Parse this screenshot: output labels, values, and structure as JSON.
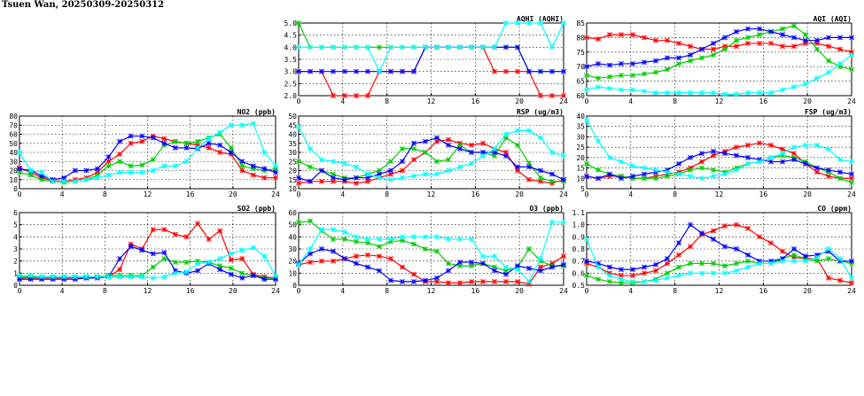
{
  "page": {
    "title": "Tsuen Wan, 20250309-20250312"
  },
  "colors": {
    "series1": "#ff0000",
    "series2": "#00cc00",
    "series3": "#0000ff",
    "series4": "#00ffff"
  },
  "chart_data": [
    {
      "id": "aqhi",
      "type": "line",
      "title": "AQHI (AQHI)",
      "xlim": [
        0,
        24
      ],
      "xticks": [
        0,
        4,
        8,
        12,
        16,
        20,
        24
      ],
      "ylim": [
        2.0,
        5.0
      ],
      "yticks": [
        "2.0",
        "2.5",
        "3.0",
        "3.5",
        "4.0",
        "4.5",
        "5.0"
      ],
      "grid": true,
      "series": [
        {
          "color": "#ff0000",
          "values": [
            3,
            3,
            3,
            2,
            2,
            2,
            2,
            3,
            3,
            3,
            3,
            4,
            4,
            4,
            4,
            4,
            4,
            3,
            3,
            3,
            3,
            2,
            2,
            2
          ]
        },
        {
          "color": "#00cc00",
          "values": [
            5,
            4,
            4,
            4,
            4,
            4,
            4,
            4,
            4,
            4,
            4,
            4,
            4,
            4,
            4,
            4,
            4,
            4,
            4,
            4,
            3,
            3,
            3,
            3
          ]
        },
        {
          "color": "#0000ff",
          "values": [
            3,
            3,
            3,
            3,
            3,
            3,
            3,
            3,
            3,
            3,
            3,
            4,
            4,
            4,
            4,
            4,
            4,
            4,
            4,
            4,
            3,
            3,
            3,
            3
          ]
        },
        {
          "color": "#00ffff",
          "values": [
            4,
            4,
            4,
            4,
            4,
            4,
            4,
            3,
            4,
            4,
            4,
            4,
            4,
            4,
            4,
            4,
            4,
            4,
            5,
            5,
            5,
            5,
            4,
            5
          ]
        }
      ]
    },
    {
      "id": "aqi",
      "type": "line",
      "title": "AQI (AQI)",
      "xlim": [
        0,
        24
      ],
      "xticks": [
        0,
        4,
        8,
        12,
        16,
        20,
        24
      ],
      "ylim": [
        60,
        85
      ],
      "yticks": [
        "60",
        "65",
        "70",
        "75",
        "80",
        "85"
      ],
      "grid": true,
      "series": [
        {
          "color": "#ff0000",
          "values": [
            80,
            79.5,
            81,
            81,
            81,
            80,
            79,
            79,
            78,
            77,
            76,
            76,
            77,
            77,
            78,
            78,
            78,
            77,
            77,
            78,
            78,
            77,
            76,
            75
          ]
        },
        {
          "color": "#00cc00",
          "values": [
            67,
            66,
            66.5,
            67,
            67,
            67.5,
            68,
            69,
            71,
            72,
            73,
            74,
            76,
            79,
            80,
            81,
            82,
            83,
            84,
            81,
            76,
            72,
            70,
            69
          ]
        },
        {
          "color": "#0000ff",
          "values": [
            70,
            71,
            70.5,
            71,
            71,
            71.5,
            72,
            73,
            73,
            74,
            76,
            78,
            80,
            82,
            83,
            83,
            82,
            81,
            80,
            79,
            79,
            80,
            80,
            80
          ]
        },
        {
          "color": "#00ffff",
          "values": [
            62,
            63,
            62.5,
            62,
            62,
            61.5,
            61,
            61,
            61,
            61,
            61,
            61,
            60.5,
            60.5,
            61,
            61,
            61,
            62,
            63,
            64,
            66,
            68,
            71,
            74
          ]
        }
      ]
    },
    {
      "id": "no2",
      "type": "line",
      "title": "NO2 (ppb)",
      "xlim": [
        0,
        24
      ],
      "xticks": [
        0,
        4,
        8,
        12,
        16,
        20,
        24
      ],
      "ylim": [
        0,
        80
      ],
      "yticks": [
        "0",
        "10",
        "20",
        "30",
        "40",
        "50",
        "60",
        "70",
        "80"
      ],
      "grid": true,
      "series": [
        {
          "color": "#ff0000",
          "values": [
            23,
            18,
            12,
            9,
            8,
            10,
            12,
            18,
            30,
            38,
            50,
            52,
            58,
            55,
            52,
            50,
            48,
            45,
            40,
            38,
            20,
            15,
            12,
            12
          ]
        },
        {
          "color": "#00cc00",
          "values": [
            18,
            15,
            10,
            8,
            7,
            8,
            10,
            15,
            25,
            30,
            25,
            26,
            32,
            48,
            52,
            50,
            52,
            56,
            60,
            45,
            25,
            22,
            20,
            22
          ]
        },
        {
          "color": "#0000ff",
          "values": [
            22,
            20,
            14,
            10,
            12,
            20,
            20,
            22,
            35,
            52,
            58,
            58,
            56,
            50,
            45,
            45,
            44,
            50,
            48,
            40,
            30,
            25,
            22,
            18
          ]
        },
        {
          "color": "#00ffff",
          "values": [
            40,
            20,
            18,
            8,
            8,
            8,
            10,
            12,
            15,
            18,
            18,
            18,
            20,
            25,
            25,
            30,
            45,
            55,
            62,
            70,
            70,
            72,
            40,
            25
          ]
        }
      ]
    },
    {
      "id": "rsp",
      "type": "line",
      "title": "RSP (ug/m3)",
      "xlim": [
        0,
        24
      ],
      "xticks": [
        0,
        4,
        8,
        12,
        16,
        20,
        24
      ],
      "ylim": [
        10,
        50
      ],
      "yticks": [
        "10",
        "15",
        "20",
        "25",
        "30",
        "35",
        "40",
        "45",
        "50"
      ],
      "grid": true,
      "series": [
        {
          "color": "#ff0000",
          "values": [
            13,
            14,
            14,
            14,
            14,
            13,
            14,
            16,
            18,
            20,
            26,
            30,
            36,
            37,
            35,
            34,
            35,
            32,
            30,
            20,
            15,
            14,
            13,
            15
          ]
        },
        {
          "color": "#00cc00",
          "values": [
            25,
            22,
            20,
            18,
            16,
            16,
            18,
            20,
            25,
            32,
            32,
            30,
            25,
            26,
            34,
            30,
            30,
            28,
            38,
            34,
            24,
            16,
            14,
            14
          ]
        },
        {
          "color": "#0000ff",
          "values": [
            16,
            14,
            20,
            16,
            15,
            16,
            16,
            18,
            20,
            25,
            35,
            36,
            38,
            34,
            32,
            30,
            30,
            30,
            28,
            22,
            22,
            20,
            18,
            15
          ]
        },
        {
          "color": "#00ffff",
          "values": [
            44,
            32,
            26,
            25,
            24,
            22,
            18,
            16,
            15,
            16,
            17,
            18,
            18,
            20,
            22,
            24,
            28,
            32,
            40,
            42,
            42,
            38,
            30,
            28
          ]
        }
      ]
    },
    {
      "id": "fsp",
      "type": "line",
      "title": "FSP (ug/m3)",
      "xlim": [
        0,
        24
      ],
      "xticks": [
        0,
        4,
        8,
        12,
        16,
        20,
        24
      ],
      "ylim": [
        5,
        40
      ],
      "yticks": [
        "5",
        "10",
        "15",
        "20",
        "25",
        "30",
        "35",
        "40"
      ],
      "grid": true,
      "series": [
        {
          "color": "#ff0000",
          "values": [
            11,
            10,
            11,
            11,
            10,
            10,
            11,
            12,
            13,
            15,
            18,
            21,
            23,
            25,
            26,
            27,
            26,
            24,
            22,
            17,
            13,
            11,
            10,
            10
          ]
        },
        {
          "color": "#00cc00",
          "values": [
            17,
            14,
            12,
            11,
            10,
            10,
            10,
            11,
            12,
            14,
            15,
            14,
            13,
            15,
            17,
            18,
            20,
            21,
            20,
            18,
            15,
            13,
            10,
            8
          ]
        },
        {
          "color": "#0000ff",
          "values": [
            11,
            10,
            12,
            10,
            11,
            12,
            13,
            14,
            17,
            20,
            22,
            23,
            22,
            21,
            20,
            19,
            18,
            18,
            19,
            17,
            15,
            14,
            13,
            12
          ]
        },
        {
          "color": "#00ffff",
          "values": [
            38,
            28,
            20,
            18,
            16,
            15,
            14,
            13,
            12,
            11,
            10,
            11,
            12,
            14,
            17,
            18,
            20,
            22,
            25,
            26,
            26,
            24,
            19,
            18
          ]
        }
      ]
    },
    {
      "id": "so2",
      "type": "line",
      "title": "SO2 (ppb)",
      "xlim": [
        0,
        24
      ],
      "xticks": [
        0,
        4,
        8,
        12,
        16,
        20,
        24
      ],
      "ylim": [
        0,
        6
      ],
      "yticks": [
        "0",
        "1",
        "2",
        "3",
        "4",
        "5",
        "6"
      ],
      "grid": true,
      "series": [
        {
          "color": "#ff0000",
          "values": [
            0.6,
            0.6,
            0.6,
            0.6,
            0.6,
            0.6,
            0.6,
            0.7,
            0.7,
            1.3,
            3.4,
            3.0,
            4.6,
            4.6,
            4.2,
            4.0,
            5.1,
            3.8,
            4.5,
            2.1,
            2.2,
            0.9,
            0.7,
            0.6
          ]
        },
        {
          "color": "#00cc00",
          "values": [
            0.7,
            0.7,
            0.7,
            0.7,
            0.7,
            0.7,
            0.7,
            0.7,
            0.8,
            0.8,
            0.8,
            0.8,
            1.5,
            2.2,
            1.9,
            1.9,
            2.0,
            1.9,
            1.6,
            1.4,
            1.0,
            0.8,
            0.6,
            0.6
          ]
        },
        {
          "color": "#0000ff",
          "values": [
            0.5,
            0.5,
            0.5,
            0.5,
            0.5,
            0.5,
            0.6,
            0.6,
            0.7,
            2.2,
            3.2,
            2.9,
            2.6,
            2.7,
            1.2,
            1.0,
            1.2,
            1.8,
            1.3,
            0.9,
            0.6,
            0.8,
            0.5,
            0.5
          ]
        },
        {
          "color": "#00ffff",
          "values": [
            0.8,
            0.8,
            0.7,
            0.7,
            0.7,
            0.7,
            0.7,
            0.7,
            0.7,
            0.7,
            0.7,
            0.7,
            0.6,
            0.7,
            1.0,
            1.1,
            1.8,
            1.9,
            2.2,
            2.6,
            2.9,
            3.1,
            2.4,
            0.8
          ]
        }
      ]
    },
    {
      "id": "o3",
      "type": "line",
      "title": "O3 (ppb)",
      "xlim": [
        0,
        24
      ],
      "xticks": [
        0,
        4,
        8,
        12,
        16,
        20,
        24
      ],
      "ylim": [
        0,
        60
      ],
      "yticks": [
        "0",
        "10",
        "20",
        "30",
        "40",
        "50",
        "60"
      ],
      "grid": true,
      "series": [
        {
          "color": "#ff0000",
          "values": [
            17,
            19,
            20,
            20,
            22,
            24,
            25,
            24,
            22,
            15,
            9,
            3,
            3,
            2,
            2,
            3,
            3,
            3,
            3,
            3,
            1,
            15,
            18,
            24
          ]
        },
        {
          "color": "#00cc00",
          "values": [
            52,
            53,
            45,
            38,
            38,
            36,
            35,
            32,
            36,
            37,
            34,
            30,
            28,
            18,
            16,
            16,
            18,
            15,
            12,
            15,
            30,
            20,
            16,
            16
          ]
        },
        {
          "color": "#0000ff",
          "values": [
            18,
            26,
            30,
            28,
            22,
            18,
            15,
            12,
            4,
            3,
            3,
            4,
            6,
            12,
            19,
            19,
            18,
            12,
            9,
            16,
            14,
            12,
            15,
            17
          ]
        },
        {
          "color": "#00ffff",
          "values": [
            17,
            30,
            46,
            46,
            44,
            40,
            38,
            38,
            38,
            40,
            40,
            40,
            40,
            38,
            38,
            38,
            24,
            24,
            15,
            13,
            3,
            22,
            52,
            52
          ]
        }
      ]
    },
    {
      "id": "co",
      "type": "line",
      "title": "CO (ppm)",
      "xlim": [
        0,
        24
      ],
      "xticks": [
        0,
        4,
        8,
        12,
        16,
        20,
        24
      ],
      "ylim": [
        0.5,
        1.1
      ],
      "yticks": [
        "0.5",
        "0.6",
        "0.7",
        "0.8",
        "0.9",
        "1.0",
        "1.1"
      ],
      "grid": true,
      "series": [
        {
          "color": "#ff0000",
          "values": [
            0.68,
            0.65,
            0.6,
            0.58,
            0.58,
            0.6,
            0.62,
            0.68,
            0.75,
            0.82,
            0.92,
            0.95,
            0.99,
            1.0,
            0.97,
            0.9,
            0.85,
            0.78,
            0.73,
            0.72,
            0.72,
            0.56,
            0.54,
            0.52
          ]
        },
        {
          "color": "#00cc00",
          "values": [
            0.58,
            0.55,
            0.53,
            0.52,
            0.52,
            0.53,
            0.55,
            0.6,
            0.65,
            0.68,
            0.68,
            0.68,
            0.66,
            0.68,
            0.7,
            0.68,
            0.68,
            0.72,
            0.75,
            0.72,
            0.7,
            0.72,
            0.7,
            0.68
          ]
        },
        {
          "color": "#0000ff",
          "values": [
            0.7,
            0.68,
            0.65,
            0.63,
            0.63,
            0.65,
            0.67,
            0.72,
            0.85,
            1.0,
            0.93,
            0.88,
            0.82,
            0.8,
            0.75,
            0.7,
            0.7,
            0.72,
            0.8,
            0.74,
            0.75,
            0.78,
            0.7,
            0.7
          ]
        },
        {
          "color": "#00ffff",
          "values": [
            0.88,
            0.65,
            0.58,
            0.55,
            0.53,
            0.53,
            0.54,
            0.56,
            0.58,
            0.6,
            0.6,
            0.6,
            0.6,
            0.62,
            0.65,
            0.68,
            0.68,
            0.7,
            0.7,
            0.7,
            0.73,
            0.8,
            0.72,
            0.56
          ]
        }
      ]
    }
  ]
}
